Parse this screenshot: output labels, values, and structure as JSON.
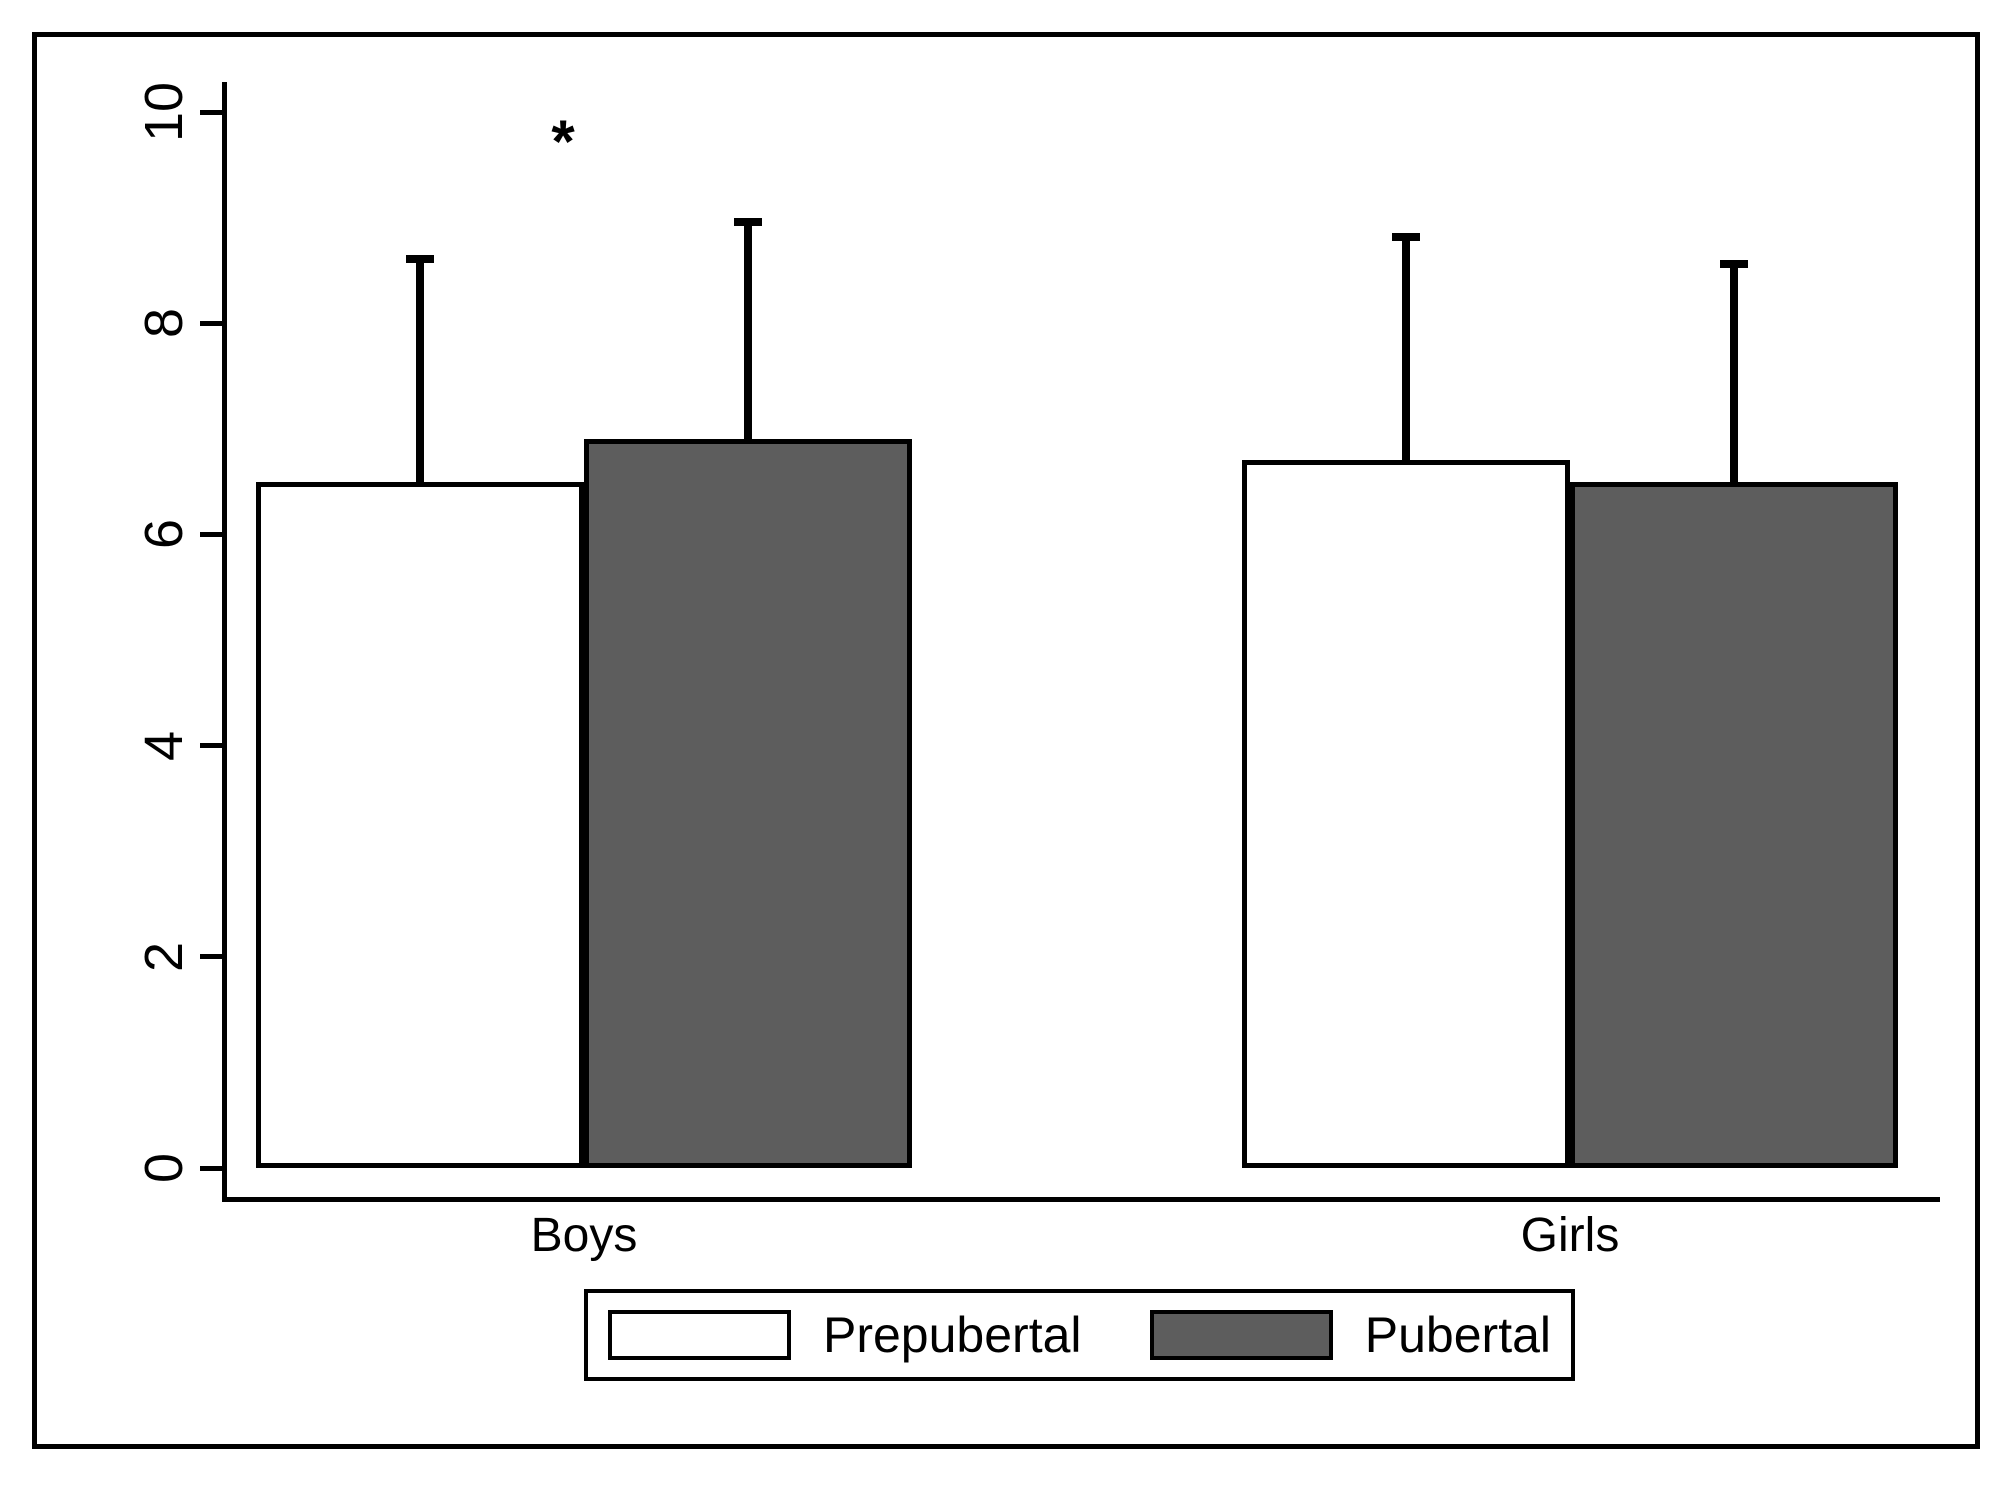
{
  "figure": {
    "title": "",
    "background_color": "#ffffff",
    "frame_color": "#000000"
  },
  "chart_data": {
    "type": "bar",
    "title": "",
    "xlabel": "",
    "ylabel": "",
    "categories": [
      "Boys",
      "Girls"
    ],
    "series": [
      {
        "name": "Prepubertal",
        "color": "#ffffff",
        "border_color": "#000000",
        "values": [
          6.5,
          6.7
        ],
        "error_upper": [
          8.65,
          8.85
        ]
      },
      {
        "name": "Pubertal",
        "color": "#5d5d5d",
        "border_color": "#000000",
        "values": [
          6.9,
          6.5
        ],
        "error_upper": [
          9.0,
          8.6
        ]
      }
    ],
    "y_axis": {
      "range": [
        0,
        10
      ],
      "tick_values": [
        0,
        2,
        4,
        6,
        8,
        10
      ],
      "tick_labels": [
        "0",
        "2",
        "4",
        "6",
        "8",
        "10"
      ],
      "tick_label_rotation_deg": 90
    },
    "error_bars": "upper only, with caps",
    "grid": "off",
    "legend_position": "bottom-center",
    "annotations": [
      {
        "text": "*",
        "target": "above Boys bars (significance marker)"
      }
    ]
  },
  "legend": {
    "items": [
      {
        "label": "Prepubertal",
        "swatch_color": "#ffffff"
      },
      {
        "label": "Pubertal",
        "swatch_color": "#5d5d5d"
      }
    ]
  },
  "annotation_star": "*"
}
